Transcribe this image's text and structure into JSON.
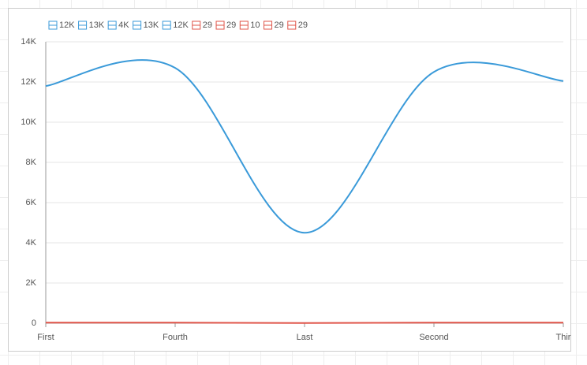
{
  "chart_data": {
    "type": "line",
    "categories": [
      "First",
      "Fourth",
      "Last",
      "Second",
      "Thir"
    ],
    "series": [
      {
        "color": "#3a9ad9",
        "values": [
          11800,
          12700,
          4500,
          12500,
          12050
        ],
        "value_labels": [
          "12K",
          "13K",
          "4K",
          "13K",
          "12K"
        ]
      },
      {
        "color": "#e0554a",
        "values": [
          29,
          29,
          10,
          29,
          29
        ],
        "value_labels": [
          "29",
          "29",
          "10",
          "29",
          "29"
        ]
      }
    ],
    "ylim": [
      0,
      14000
    ],
    "yticks": [
      0,
      {
        "value": 2000,
        "label": "2K"
      },
      {
        "value": 4000,
        "label": "4K"
      },
      {
        "value": 6000,
        "label": "6K"
      },
      {
        "value": 8000,
        "label": "8K"
      },
      {
        "value": 10000,
        "label": "10K"
      },
      {
        "value": 12000,
        "label": "12K"
      },
      {
        "value": 14000,
        "label": "14K"
      }
    ],
    "grid": true
  }
}
